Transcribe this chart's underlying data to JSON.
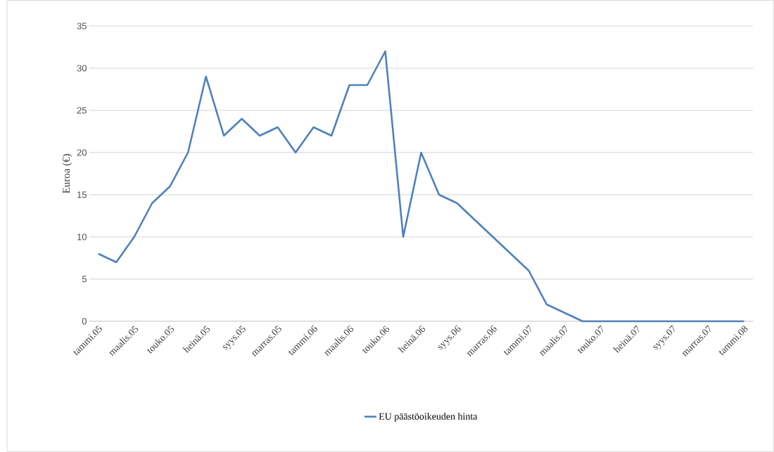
{
  "chart_data": {
    "type": "line",
    "categories": [
      "tammi.05",
      null,
      "maalis.05",
      null,
      "touko.05",
      null,
      "heinä.05",
      null,
      "syys.05",
      null,
      "marras.05",
      null,
      "tammi.06",
      null,
      "maalis.06",
      null,
      "touko.06",
      null,
      "heinä.06",
      null,
      "syys.06",
      null,
      "marras.06",
      null,
      "tammi.07",
      null,
      "maalis.07",
      null,
      "touko.07",
      null,
      "heinä.07",
      null,
      "syys.07",
      null,
      "marras.07",
      null,
      "tammi.08"
    ],
    "series": [
      {
        "name": "EU päästöoikeuden hinta",
        "color": "#4f81bd",
        "values": [
          8,
          7,
          10,
          14,
          16,
          20,
          29,
          22,
          24,
          22,
          23,
          20,
          23,
          22,
          28,
          28,
          32,
          10,
          20,
          15,
          14,
          12,
          10,
          8,
          6,
          2,
          1,
          0,
          0,
          0,
          0,
          0,
          0,
          0,
          0,
          0,
          0
        ]
      }
    ],
    "ylabel": "Euroa (€)",
    "ylim": [
      0,
      35
    ],
    "yticks": [
      0,
      5,
      10,
      15,
      20,
      25,
      30,
      35
    ],
    "grid": "y",
    "legend": "bottom",
    "marker": "none",
    "line_style": "solid"
  }
}
